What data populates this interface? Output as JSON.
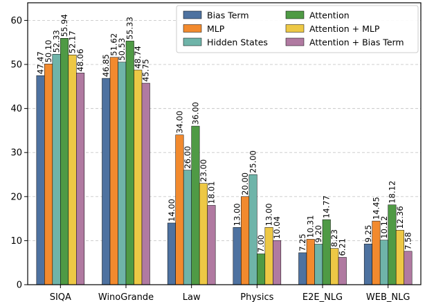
{
  "chart_data": {
    "type": "bar",
    "categories": [
      "SIQA",
      "WinoGrande",
      "Law",
      "Physics",
      "E2E_NLG",
      "WEB_NLG"
    ],
    "series": [
      {
        "name": "Bias Term",
        "color": "#4e72a0",
        "values": [
          47.47,
          46.85,
          14.0,
          13.0,
          7.25,
          9.25
        ],
        "labels": [
          "47.47",
          "46.85",
          "14.00",
          "13.00",
          "7.25",
          "9.25"
        ]
      },
      {
        "name": "MLP",
        "color": "#f28a2e",
        "values": [
          50.1,
          51.62,
          34.0,
          20.0,
          10.31,
          14.45
        ],
        "labels": [
          "50.10",
          "51.62",
          "34.00",
          "20.00",
          "10.31",
          "14.45"
        ]
      },
      {
        "name": "Hidden States",
        "color": "#6fb4a9",
        "values": [
          52.33,
          50.53,
          26.0,
          25.0,
          9.2,
          10.12
        ],
        "labels": [
          "52.33",
          "50.53",
          "26.00",
          "25.00",
          "9.20",
          "10.12"
        ]
      },
      {
        "name": "Attention",
        "color": "#4f9a45",
        "values": [
          55.94,
          55.33,
          36.0,
          7.0,
          14.77,
          18.12
        ],
        "labels": [
          "55.94",
          "55.33",
          "36.00",
          "7.00",
          "14.77",
          "18.12"
        ]
      },
      {
        "name": "Attention + MLP",
        "color": "#edc845",
        "values": [
          52.17,
          48.74,
          23.0,
          13.0,
          8.23,
          12.36
        ],
        "labels": [
          "52.17",
          "48.74",
          "23.00",
          "13.00",
          "8.23",
          "12.36"
        ]
      },
      {
        "name": "Attention + Bias Term",
        "color": "#b07aa1",
        "values": [
          48.06,
          45.75,
          18.01,
          10.04,
          6.21,
          7.58
        ],
        "labels": [
          "48.06",
          "45.75",
          "18.01",
          "10.04",
          "6.21",
          "7.58"
        ]
      }
    ],
    "yticks": [
      "0",
      "10",
      "20",
      "30",
      "40",
      "50",
      "60"
    ],
    "ylim": [
      0,
      64
    ],
    "grid": "y-dashed",
    "legend": "top-right",
    "legend_columns": 2
  }
}
